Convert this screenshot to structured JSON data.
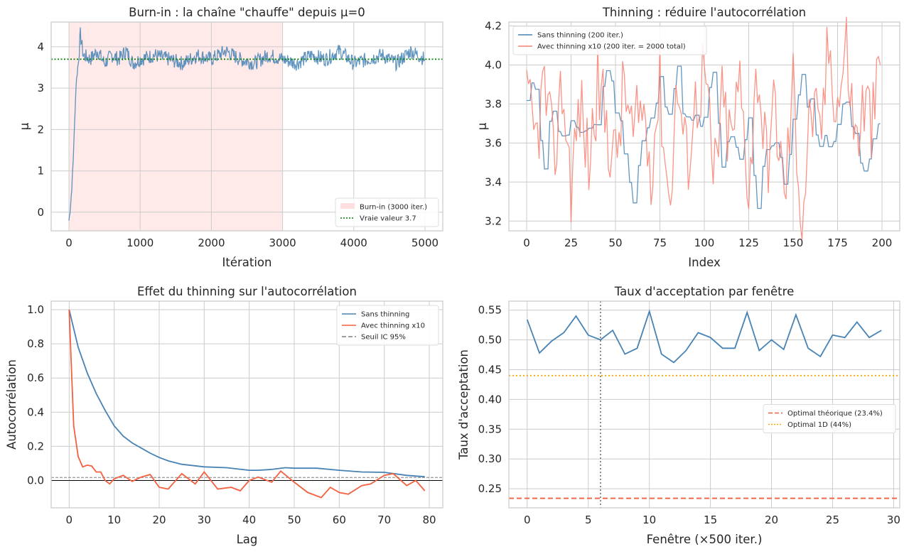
{
  "chart_data": [
    {
      "type": "line",
      "title": "Burn-in : la chaîne \"chauffe\" depuis μ=0",
      "xlabel": "Itération",
      "ylabel": "μ",
      "xlim": [
        -250,
        5250
      ],
      "ylim": [
        -0.45,
        4.6
      ],
      "xticks": [
        0,
        1000,
        2000,
        3000,
        4000,
        5000
      ],
      "yticks": [
        0,
        1,
        2,
        3,
        4
      ],
      "grid": true,
      "legend_position": "lower-right",
      "colors": {
        "trace": "#4682b4",
        "burnin": "#ffc0c0",
        "true_value": "#008000"
      },
      "shaded_region": {
        "label": "Burn-in (3000 iter.)",
        "x_start": 0,
        "x_end": 3000
      },
      "reference_line": {
        "label": "Vraie valeur 3.7",
        "y": 3.7
      },
      "series": [
        {
          "x": [
            0,
            20,
            40,
            60,
            80,
            100,
            130,
            160,
            200,
            300,
            400,
            500,
            600,
            700,
            800,
            900,
            1000,
            1200,
            1400,
            1600,
            1800,
            2000,
            2200,
            2400,
            2600,
            2800,
            3000,
            3200,
            3400,
            3600,
            3800,
            4000,
            4200,
            4400,
            4600,
            4800,
            5000
          ],
          "y": [
            -0.2,
            0.1,
            0.6,
            1.3,
            2.2,
            3.1,
            3.6,
            4.3,
            3.8,
            3.7,
            3.9,
            3.6,
            3.8,
            3.7,
            3.9,
            3.6,
            3.7,
            3.8,
            3.7,
            3.6,
            3.8,
            3.7,
            3.9,
            3.7,
            3.6,
            3.8,
            3.7,
            3.6,
            3.8,
            3.7,
            3.9,
            3.6,
            3.7,
            3.8,
            3.6,
            3.9,
            3.7
          ]
        }
      ]
    },
    {
      "type": "line",
      "title": "Thinning : réduire l'autocorrélation",
      "xlabel": "Index",
      "ylabel": "μ",
      "xlim": [
        -10,
        210
      ],
      "ylim": [
        3.15,
        4.22
      ],
      "xticks": [
        0,
        25,
        50,
        75,
        100,
        125,
        150,
        175,
        200
      ],
      "yticks": [
        3.2,
        3.4,
        3.6,
        3.8,
        4.0,
        4.2
      ],
      "grid": true,
      "legend_position": "upper-left",
      "series": [
        {
          "name": "Sans thinning (200 iter.)",
          "color": "#4682b4",
          "x": [
            0,
            5,
            10,
            15,
            20,
            25,
            30,
            35,
            40,
            45,
            50,
            55,
            60,
            65,
            70,
            75,
            80,
            85,
            90,
            95,
            100,
            105,
            110,
            115,
            120,
            125,
            130,
            135,
            140,
            145,
            150,
            155,
            160,
            165,
            170,
            175,
            180,
            185,
            190,
            195,
            199
          ],
          "y": [
            3.8,
            3.9,
            3.5,
            3.8,
            3.6,
            3.7,
            3.6,
            3.7,
            3.7,
            4.0,
            3.8,
            3.6,
            3.3,
            3.6,
            3.7,
            3.9,
            3.8,
            3.95,
            3.7,
            3.7,
            3.7,
            3.95,
            3.5,
            3.6,
            3.5,
            3.7,
            3.3,
            3.6,
            3.6,
            3.4,
            3.7,
            3.9,
            3.8,
            3.6,
            3.6,
            3.7,
            3.8,
            3.7,
            3.4,
            3.6,
            3.7
          ]
        },
        {
          "name": "Avec thinning x10 (200 iter. = 2000 total)",
          "color": "#fa8072",
          "x": [
            0,
            5,
            10,
            15,
            20,
            25,
            30,
            35,
            40,
            45,
            50,
            55,
            60,
            65,
            70,
            75,
            80,
            85,
            90,
            95,
            100,
            105,
            110,
            115,
            120,
            125,
            130,
            135,
            140,
            145,
            150,
            155,
            160,
            165,
            170,
            175,
            180,
            185,
            190,
            195,
            199
          ],
          "y": [
            3.8,
            3.6,
            3.9,
            3.5,
            3.9,
            3.4,
            3.8,
            3.5,
            3.9,
            3.7,
            3.5,
            3.9,
            3.6,
            3.8,
            3.5,
            3.9,
            3.3,
            3.9,
            3.5,
            3.8,
            4.0,
            3.4,
            3.8,
            3.6,
            3.9,
            3.4,
            4.0,
            3.5,
            3.8,
            3.3,
            3.9,
            3.2,
            3.8,
            3.6,
            4.1,
            3.8,
            4.1,
            3.6,
            3.8,
            3.7,
            4.0
          ]
        }
      ]
    },
    {
      "type": "line",
      "title": "Effet du thinning sur l'autocorrélation",
      "xlabel": "Lag",
      "ylabel": "Autocorrélation",
      "xlim": [
        -4,
        83
      ],
      "ylim": [
        -0.16,
        1.05
      ],
      "xticks": [
        0,
        10,
        20,
        30,
        40,
        50,
        60,
        70,
        80
      ],
      "yticks": [
        0.0,
        0.2,
        0.4,
        0.6,
        0.8,
        1.0
      ],
      "grid": true,
      "legend_position": "upper-right",
      "zero_line": 0,
      "threshold": {
        "label": "Seuil IC 95%",
        "y": 0.018,
        "color": "#808080"
      },
      "series": [
        {
          "name": "Sans thinning",
          "color": "#4682b4",
          "x": [
            0,
            2,
            4,
            6,
            8,
            10,
            12,
            14,
            16,
            18,
            20,
            22,
            25,
            30,
            35,
            40,
            42,
            45,
            48,
            50,
            55,
            60,
            65,
            70,
            75,
            79
          ],
          "y": [
            1.0,
            0.78,
            0.63,
            0.51,
            0.41,
            0.32,
            0.26,
            0.22,
            0.19,
            0.16,
            0.135,
            0.115,
            0.095,
            0.08,
            0.075,
            0.06,
            0.06,
            0.065,
            0.075,
            0.072,
            0.072,
            0.06,
            0.05,
            0.048,
            0.03,
            0.022
          ]
        },
        {
          "name": "Avec thinning x10",
          "color": "#f4603f",
          "x": [
            0,
            1,
            2,
            3,
            4,
            5,
            6,
            7,
            8,
            9,
            10,
            12,
            14,
            16,
            18,
            20,
            22,
            25,
            28,
            30,
            33,
            36,
            38,
            40,
            42,
            45,
            47,
            50,
            53,
            56,
            58,
            60,
            62,
            65,
            67,
            70,
            72,
            75,
            77,
            79
          ],
          "y": [
            1.0,
            0.32,
            0.14,
            0.08,
            0.09,
            0.085,
            0.05,
            0.05,
            0.0,
            -0.02,
            0.01,
            0.03,
            -0.005,
            0.02,
            0.035,
            -0.04,
            -0.05,
            0.04,
            -0.02,
            0.05,
            -0.05,
            -0.04,
            -0.06,
            0.0,
            0.02,
            -0.01,
            0.055,
            -0.01,
            -0.07,
            -0.1,
            -0.04,
            -0.07,
            -0.08,
            -0.03,
            -0.02,
            0.03,
            0.04,
            -0.03,
            0.0,
            -0.06
          ]
        }
      ]
    },
    {
      "type": "line",
      "title": "Taux d'acceptation par fenêtre",
      "xlabel": "Fenêtre (×500 iter.)",
      "ylabel": "Taux d'acceptation",
      "xlim": [
        -1.5,
        30.5
      ],
      "ylim": [
        0.218,
        0.565
      ],
      "xticks": [
        0,
        5,
        10,
        15,
        20,
        25,
        30
      ],
      "yticks": [
        0.25,
        0.3,
        0.35,
        0.4,
        0.45,
        0.5,
        0.55
      ],
      "grid": true,
      "legend_position": "center-right",
      "vertical_marker": {
        "x": 6,
        "color": "#808080"
      },
      "reference_lines": [
        {
          "label": "Optimal théorique (23.4%)",
          "y": 0.234,
          "color": "#f4603f",
          "style": "dashed"
        },
        {
          "label": "Optimal 1D (44%)",
          "y": 0.44,
          "color": "#ffa500",
          "style": "dotted"
        }
      ],
      "series": [
        {
          "color": "#4682b4",
          "x": [
            0,
            1,
            2,
            3,
            4,
            5,
            6,
            7,
            8,
            9,
            10,
            11,
            12,
            13,
            14,
            15,
            16,
            17,
            18,
            19,
            20,
            21,
            22,
            23,
            24,
            25,
            26,
            27,
            28,
            29
          ],
          "y": [
            0.534,
            0.478,
            0.498,
            0.512,
            0.54,
            0.508,
            0.5,
            0.516,
            0.476,
            0.486,
            0.548,
            0.476,
            0.462,
            0.482,
            0.512,
            0.504,
            0.486,
            0.486,
            0.546,
            0.482,
            0.5,
            0.484,
            0.542,
            0.486,
            0.472,
            0.508,
            0.504,
            0.53,
            0.504,
            0.516
          ]
        }
      ]
    }
  ]
}
